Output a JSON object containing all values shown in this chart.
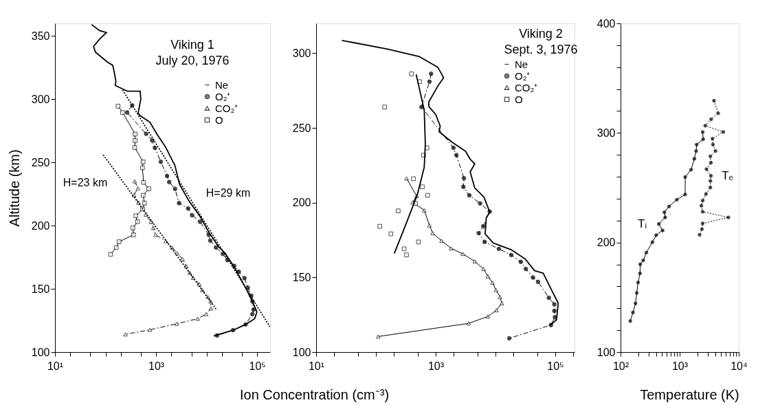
{
  "chart_data": [
    {
      "type": "line",
      "title": "Viking 1",
      "subtitle": "July 20, 1976",
      "xlabel": "Ion Concentration (cm⁻³)",
      "ylabel": "Altitude (km)",
      "log": "x",
      "legend": "top right",
      "xlim": [
        10,
        180000
      ],
      "ylim": [
        100,
        360
      ],
      "xticks": [
        {
          "value": 10,
          "label": "10¹"
        },
        {
          "value": 20,
          "label": null
        },
        {
          "value": 50,
          "label": null
        },
        {
          "value": 100,
          "label": null
        },
        {
          "value": 200,
          "label": null
        },
        {
          "value": 500,
          "label": null
        },
        {
          "value": 1000,
          "label": "10³"
        },
        {
          "value": 2000,
          "label": null
        },
        {
          "value": 5000,
          "label": null
        },
        {
          "value": 10000,
          "label": null
        },
        {
          "value": 20000,
          "label": null
        },
        {
          "value": 50000,
          "label": null
        },
        {
          "value": 100000,
          "label": "10⁵"
        }
      ],
      "yticks": [
        100,
        150,
        200,
        250,
        300,
        350
      ],
      "annotations": [
        "H=23 km",
        "H=29 km"
      ],
      "series": [
        {
          "name": "Ne",
          "color": "#000000",
          "type": "line",
          "marker": "none",
          "line_style": "solid",
          "x": [
            53,
            77,
            105,
            79,
            58,
            63,
            111,
            139,
            151,
            160,
            156,
            268,
            484,
            499,
            441,
            474,
            755,
            1030,
            1560,
            2370,
            2910,
            4400,
            7400,
            11200,
            17000,
            23200,
            35100,
            58900,
            80400,
            98900,
            89100,
            58900,
            33400,
            13800
          ],
          "values": [
            359.1,
            354.2,
            352.7,
            348.2,
            341.8,
            337.3,
            329.1,
            326.9,
            320,
            314.5,
            310.9,
            306.4,
            306.4,
            300,
            289.1,
            287.3,
            281.8,
            272.7,
            261.8,
            247.3,
            232.7,
            220,
            207.3,
            194.5,
            183.6,
            178.2,
            167.3,
            150.9,
            140,
            131.8,
            126.4,
            121.8,
            117.3,
            112.7
          ]
        },
        {
          "name": "O₂⁺",
          "color": "#000000",
          "type": "line",
          "marker": "circle",
          "line_style": "dashed",
          "x": [
            337,
            268,
            634,
            838,
            948,
            1240,
            1650,
            1820,
            2370,
            2850,
            4310,
            5150,
            7400,
            11000,
            11800,
            15300,
            20900,
            25700,
            35100,
            43200,
            56000,
            65300,
            76400,
            80400,
            84700,
            80400,
            58900,
            33400,
            16100
          ],
          "values": [
            295.1,
            289.5,
            272.7,
            267.3,
            261.5,
            250.5,
            239.3,
            234.5,
            229.1,
            217.8,
            213.6,
            208.2,
            203.1,
            192.7,
            188.2,
            182.7,
            177.6,
            172.7,
            168.2,
            163.6,
            158.5,
            150.9,
            144.5,
            140,
            133.6,
            130,
            121.8,
            117.3,
            113.1
          ]
        },
        {
          "name": "CO₂⁺",
          "color": "#000000",
          "type": "line",
          "marker": "triangle",
          "line_style": "dashed",
          "x": [
            378,
            437,
            366,
            450,
            627,
            796,
            883,
            979,
            1560,
            2070,
            2620,
            3330,
            3970,
            4640,
            5420,
            7170,
            8200,
            10600,
            12000,
            12200,
            9800,
            6670,
            2570,
            755,
            247
          ],
          "values": [
            235.1,
            229.6,
            224.2,
            218.2,
            208.7,
            202.9,
            198.2,
            192.7,
            187.8,
            182.7,
            178.2,
            173.6,
            167.8,
            162.7,
            158.7,
            153.6,
            149.1,
            143.6,
            140,
            134.5,
            130,
            126.4,
            122.4,
            117.6,
            114
          ]
        },
        {
          "name": "O",
          "color": "#000000",
          "type": "line",
          "marker": "square",
          "line_style": "solid",
          "x": [
            177,
            218,
            385,
            385,
            378,
            554,
            537,
            565,
            718,
            554,
            589,
            542,
            397,
            428,
            348,
            358,
            186,
            163,
            126
          ],
          "values": [
            294.5,
            289.5,
            272.4,
            267.3,
            261.8,
            250.4,
            245.8,
            234.2,
            229.1,
            224,
            217.8,
            213.1,
            207.8,
            203.1,
            198.2,
            192.7,
            187.3,
            182.7,
            177.3
          ]
        },
        {
          "color": "#000000",
          "type": "line",
          "marker": "none",
          "line_style": "dotted",
          "x": [
            90,
            15600
          ],
          "values": [
            256,
            133.6
          ]
        },
        {
          "color": "#000000",
          "type": "line",
          "marker": "none",
          "line_style": "dotted",
          "x": [
            218,
            178600
          ],
          "values": [
            307.3,
            120
          ]
        }
      ]
    },
    {
      "type": "line",
      "title": "Viking 2",
      "subtitle": "Sept. 3, 1976",
      "log": "x",
      "legend": "top right",
      "xlim": [
        10,
        210000
      ],
      "ylim": [
        100,
        320
      ],
      "xticks": [
        {
          "value": 10,
          "label": "10¹"
        },
        {
          "value": 20,
          "label": null
        },
        {
          "value": 50,
          "label": null
        },
        {
          "value": 100,
          "label": null
        },
        {
          "value": 200,
          "label": null
        },
        {
          "value": 500,
          "label": null
        },
        {
          "value": 1000,
          "label": "10³"
        },
        {
          "value": 2000,
          "label": null
        },
        {
          "value": 5000,
          "label": null
        },
        {
          "value": 10000,
          "label": null
        },
        {
          "value": 20000,
          "label": null
        },
        {
          "value": 50000,
          "label": null
        },
        {
          "value": 100000,
          "label": "10⁵"
        },
        {
          "value": 200000,
          "label": null
        }
      ],
      "yticks": [
        100,
        150,
        200,
        250,
        300
      ],
      "series": [
        {
          "name": "Ne",
          "color": "#000000",
          "type": "line",
          "marker": "none",
          "line_style": "solid",
          "x": [
            27,
            156,
            538,
            1090,
            1360,
            1090,
            767,
            767,
            1000,
            1190,
            1140,
            1860,
            3160,
            3780,
            4500,
            3780,
            4500,
            6420,
            8020,
            7020,
            6720,
            9160,
            18600,
            31600,
            45100,
            63000,
            89100,
            112000,
            105000,
            80900
          ],
          "values": [
            308.6,
            302.8,
            297.7,
            290.5,
            283.6,
            278.2,
            267.4,
            264.4,
            259,
            251.3,
            247.5,
            240.6,
            234.4,
            229,
            226,
            220.6,
            209.8,
            203.7,
            193.7,
            189.9,
            179.1,
            173,
            168.4,
            162.2,
            154.5,
            152.8,
            140.6,
            132.8,
            121.6,
            117.7
          ]
        },
        {
          "name": "O₂⁺",
          "color": "#000000",
          "type": "line",
          "marker": "circle",
          "line_style": "dashed",
          "x": [
            838,
            787,
            578,
            1980,
            2220,
            2970,
            2900,
            3650,
            5520,
            8020,
            6250,
            5240,
            6590,
            11400,
            18300,
            26500,
            32200,
            42400,
            51500,
            78200,
            96600,
            96600,
            98600,
            84700,
            17000
          ],
          "values": [
            286.3,
            281,
            264,
            236.7,
            231.8,
            216.3,
            210.6,
            204.9,
            199.5,
            194,
            184.2,
            179.6,
            173.7,
            169.1,
            165,
            160.4,
            155.6,
            149.9,
            147,
            136.3,
            132,
            127.6,
            123.3,
            118.1,
            109.2
          ]
        },
        {
          "name": "CO₂⁺",
          "color": "#000000",
          "type": "line",
          "marker": "triangle",
          "line_style": "solid",
          "x": [
            325,
            480,
            413,
            643,
            787,
            891,
            1250,
            1810,
            2850,
            4500,
            6310,
            7470,
            8920,
            10200,
            11900,
            12800,
            10400,
            7470,
            3550,
            109
          ],
          "values": [
            216.3,
            204.5,
            200.2,
            194.9,
            184.8,
            179.6,
            174.5,
            169.4,
            165.7,
            160.7,
            155.6,
            150.7,
            146.4,
            141.5,
            136.9,
            132.7,
            128,
            123.8,
            119.2,
            110.4
          ]
        },
        {
          "name": "O",
          "color": "#000000",
          "type": "scatter",
          "marker": "square",
          "x": [
            394,
            538,
            140,
            714,
            626,
            424,
            598,
            733,
            459,
            236,
            116,
            178,
            515,
            297,
            325
          ],
          "values": [
            286.2,
            281,
            264,
            236.7,
            231.8,
            216,
            210.6,
            204.9,
            199.5,
            194.5,
            184.2,
            179.1,
            173.7,
            169.1,
            165
          ]
        },
        {
          "color": "#000000",
          "type": "line",
          "marker": "none",
          "line_style": "solid",
          "x": [
            203,
            316,
            492,
            643,
            671,
            643,
            471
          ],
          "values": [
            166,
            185.3,
            205.2,
            223.7,
            239,
            262,
            285.9
          ]
        }
      ]
    },
    {
      "type": "line",
      "xlabel": "Temperature (K)",
      "log": "x",
      "legend": false,
      "xlim": [
        100,
        10000
      ],
      "ylim": [
        100,
        400
      ],
      "xticks": [
        {
          "value": 100,
          "label": "10²"
        },
        {
          "value": 200,
          "label": null
        },
        {
          "value": 300,
          "label": null
        },
        {
          "value": 400,
          "label": null
        },
        {
          "value": 500,
          "label": null
        },
        {
          "value": 600,
          "label": null
        },
        {
          "value": 700,
          "label": null
        },
        {
          "value": 800,
          "label": null
        },
        {
          "value": 900,
          "label": null
        },
        {
          "value": 1000,
          "label": "10³"
        },
        {
          "value": 2000,
          "label": null
        },
        {
          "value": 3000,
          "label": null
        },
        {
          "value": 4000,
          "label": null
        },
        {
          "value": 5000,
          "label": null
        },
        {
          "value": 6000,
          "label": null
        },
        {
          "value": 7000,
          "label": null
        },
        {
          "value": 8000,
          "label": null
        },
        {
          "value": 9000,
          "label": null
        },
        {
          "value": 10000,
          "label": "10⁴"
        }
      ],
      "yticks": [
        100,
        {
          "value": 120,
          "label": null
        },
        {
          "value": 140,
          "label": null
        },
        {
          "value": 160,
          "label": null
        },
        {
          "value": 180,
          "label": null
        },
        200,
        {
          "value": 220,
          "label": null
        },
        {
          "value": 240,
          "label": null
        },
        {
          "value": 260,
          "label": null
        },
        {
          "value": 280,
          "label": null
        },
        300,
        {
          "value": 320,
          "label": null
        },
        {
          "value": 340,
          "label": null
        },
        {
          "value": 360,
          "label": null
        },
        {
          "value": 380,
          "label": null
        },
        400
      ],
      "series": [
        {
          "name": "Tᵢ",
          "color": "#000000",
          "type": "line",
          "marker": "circle",
          "line_style": "solid",
          "x": [
            146,
            162,
            179,
            188,
            198,
            213,
            215,
            242,
            273,
            345,
            401,
            515,
            443,
            569,
            552,
            662,
            895,
            1240,
            1240,
            1560,
            1770,
            1900,
            1940,
            2500,
            2450
          ],
          "values": [
            128.3,
            136.1,
            144.4,
            154,
            163.5,
            171.8,
            180.1,
            183.7,
            190.8,
            200.3,
            206.7,
            211,
            216.9,
            222.9,
            227.6,
            232.9,
            239.1,
            243.8,
            259.7,
            266.4,
            276.4,
            283.5,
            289.4,
            294.2,
            300.9
          ]
        },
        {
          "name": "Tₑ",
          "color": "#000000",
          "type": "line",
          "marker": "circle",
          "line_style": "dotted",
          "x": [
            3810,
            4480,
            3410,
            2710,
            5470,
            3590,
            3660,
            4040,
            3310,
            3380,
            2840,
            3380,
            3310,
            3310,
            2790,
            2450,
            2330,
            2450,
            6680,
            2450,
            2380,
            2170
          ],
          "values": [
            329.4,
            318,
            312.5,
            306.6,
            300.9,
            294.7,
            289.4,
            283.5,
            278.7,
            272.8,
            266.9,
            260.9,
            256.2,
            250.2,
            244.3,
            238.3,
            233.6,
            228.1,
            222.9,
            217.4,
            212.2,
            207
          ]
        }
      ]
    }
  ]
}
